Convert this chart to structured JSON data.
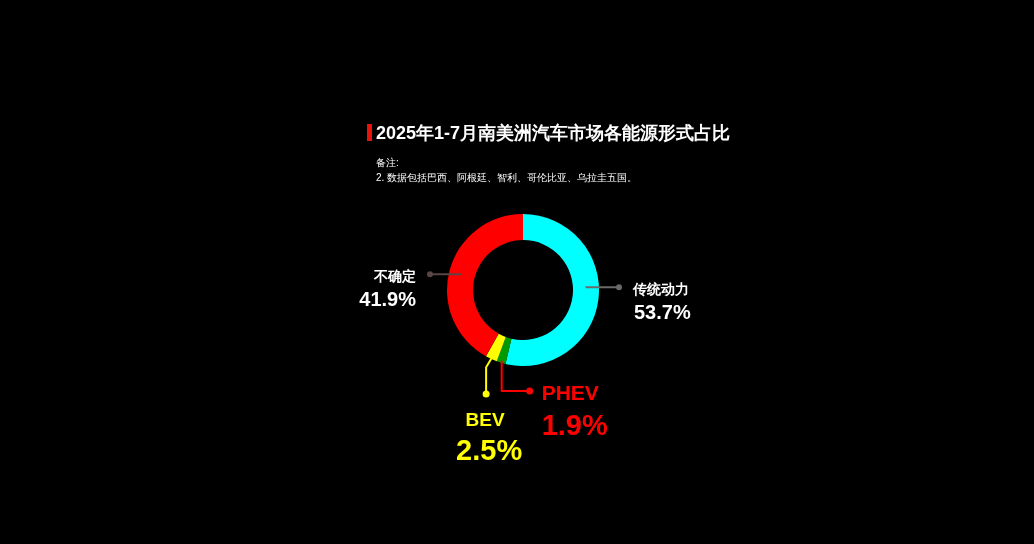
{
  "chart_data": {
    "type": "donut",
    "title": "2025年1-7月南美洲汽车市场各能源形式占比",
    "annotations": [
      "备注:",
      "2. 数据包括巴西、阿根廷、智利、哥伦比亚、乌拉圭五国。"
    ],
    "categories": [
      "传统动力",
      "PHEV",
      "BEV",
      "不确定"
    ],
    "values": [
      53.7,
      1.9,
      2.5,
      41.9
    ],
    "value_labels": [
      "53.7%",
      "1.9%",
      "2.5%",
      "41.9%"
    ],
    "colors": [
      "#00ffff",
      "#009900",
      "#ffff00",
      "#ff0000"
    ]
  }
}
